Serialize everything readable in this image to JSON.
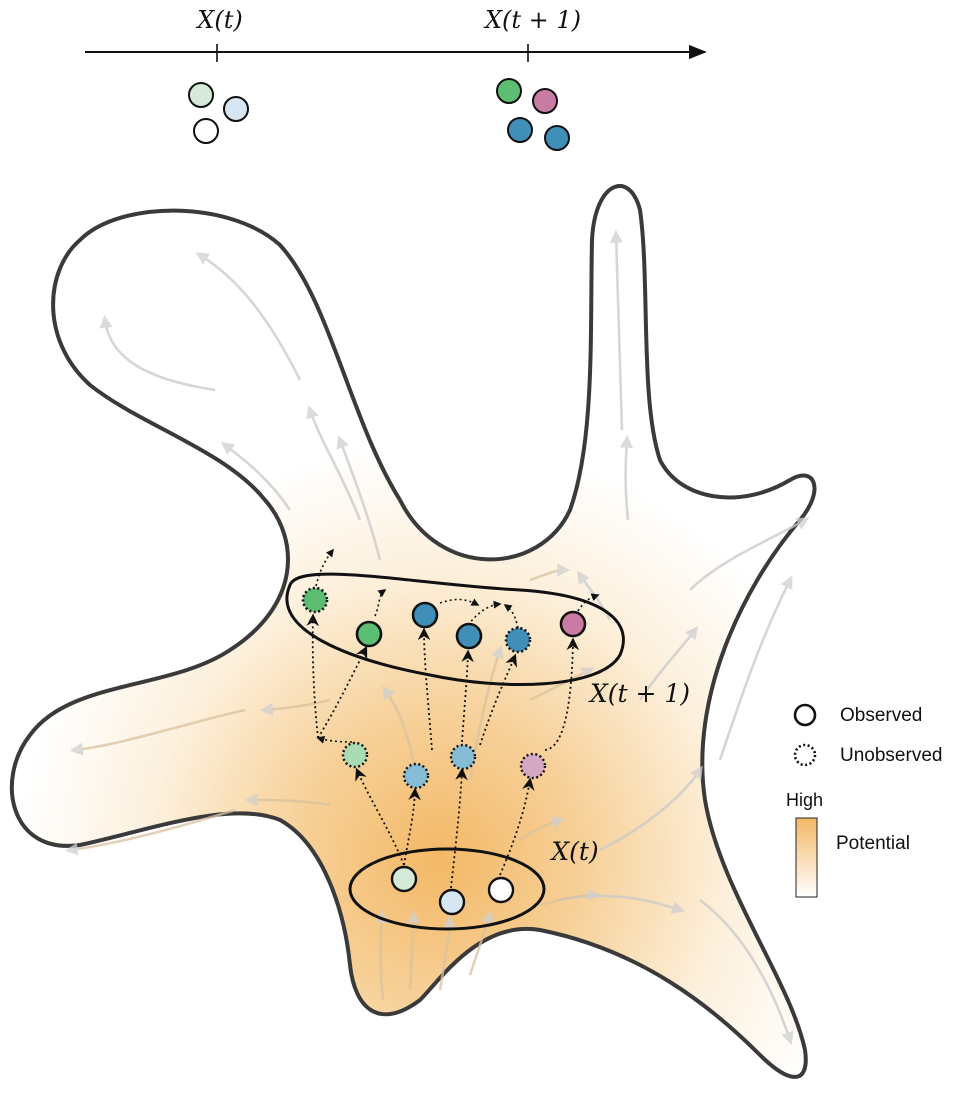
{
  "timeline": {
    "label_t": "X(t)",
    "label_t1": "X(t + 1)"
  },
  "annotations": {
    "group_t": "X(t)",
    "group_t1": "X(t + 1)"
  },
  "legend": {
    "observed": "Observed",
    "unobserved": "Unobserved",
    "high": "High",
    "potential": "Potential"
  },
  "colors": {
    "green": "#5cbd73",
    "pink": "#c97ba3",
    "blue": "#3f8fb8",
    "light_green": "#d5ead8",
    "light_blue": "#d6e6f2",
    "mid_blue": "#86bdd6",
    "mauve": "#d4a8c4",
    "potential_high": "#f3b866",
    "potential_low": "#ffffff"
  }
}
